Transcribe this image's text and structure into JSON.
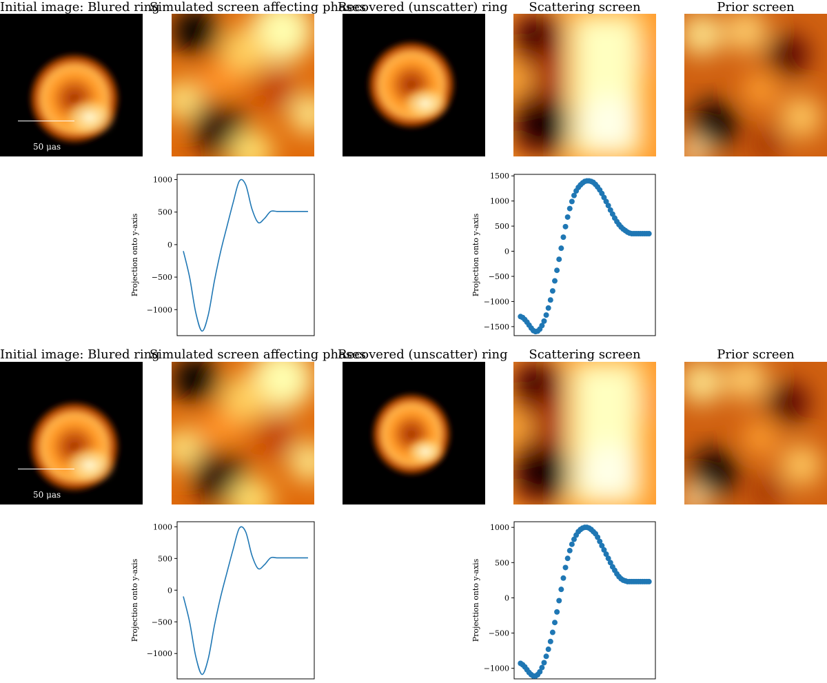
{
  "rows": [
    {
      "titles": [
        "Initial image: Blured ring",
        "Simulated screen affecting phases",
        "Recovered (unscatter) ring",
        "Scattering screen",
        "Prior screen"
      ],
      "scalebar_label": "50 μas"
    },
    {
      "titles": [
        "Initial image: Blured ring",
        "Simulated screen affecting phases",
        "Recovered (unscatter) ring",
        "Scattering screen",
        "Prior screen"
      ],
      "scalebar_label": "50 μas"
    }
  ],
  "colors": {
    "line": "#1f77b4",
    "colormap": "afmhot"
  },
  "chart_data": [
    {
      "type": "line",
      "ylabel": "Projection onto y-axis",
      "xlabel": "",
      "ylim": [
        -1400,
        1080
      ],
      "yticks": [
        1000,
        500,
        0,
        -500,
        -1000
      ],
      "x": [
        0,
        1,
        2,
        3,
        4,
        5,
        6,
        7,
        8,
        9,
        10,
        11,
        12,
        13,
        14,
        15,
        16,
        17,
        18,
        19,
        20
      ],
      "values": [
        -100,
        -500,
        -1050,
        -1330,
        -1080,
        -550,
        -100,
        280,
        650,
        980,
        920,
        550,
        340,
        400,
        510,
        510,
        510,
        510,
        510,
        510,
        510
      ]
    },
    {
      "type": "scatter",
      "ylabel": "Projection onto y-axis",
      "xlabel": "",
      "ylim": [
        -1680,
        1530
      ],
      "yticks": [
        1500,
        1000,
        500,
        0,
        -500,
        -1000,
        -1500
      ],
      "x": [
        0,
        1,
        2,
        3,
        4,
        5,
        6,
        7,
        8,
        9,
        10,
        11,
        12,
        13,
        14,
        15,
        16,
        17,
        18,
        19,
        20,
        21,
        22,
        23,
        24,
        25,
        26,
        27,
        28,
        29,
        30,
        31,
        32,
        33,
        34,
        35,
        36,
        37,
        38,
        39,
        40,
        41,
        42,
        43,
        44,
        45,
        46,
        47,
        48,
        49,
        50,
        51,
        52,
        53,
        54,
        55,
        56,
        57,
        58,
        59,
        60
      ],
      "values": [
        -1300,
        -1320,
        -1360,
        -1410,
        -1470,
        -1530,
        -1580,
        -1600,
        -1590,
        -1550,
        -1480,
        -1390,
        -1270,
        -1130,
        -970,
        -790,
        -590,
        -380,
        -160,
        60,
        280,
        490,
        680,
        850,
        990,
        1110,
        1200,
        1270,
        1320,
        1360,
        1390,
        1400,
        1400,
        1390,
        1370,
        1330,
        1280,
        1220,
        1150,
        1070,
        990,
        910,
        820,
        740,
        660,
        590,
        530,
        480,
        440,
        410,
        380,
        360,
        350,
        350,
        350,
        350,
        350,
        350,
        350,
        350,
        350
      ]
    },
    {
      "type": "line",
      "ylabel": "Projection onto y-axis",
      "xlabel": "",
      "ylim": [
        -1400,
        1080
      ],
      "yticks": [
        1000,
        500,
        0,
        -500,
        -1000
      ],
      "x": [
        0,
        1,
        2,
        3,
        4,
        5,
        6,
        7,
        8,
        9,
        10,
        11,
        12,
        13,
        14,
        15,
        16,
        17,
        18,
        19,
        20
      ],
      "values": [
        -100,
        -500,
        -1050,
        -1330,
        -1080,
        -550,
        -100,
        280,
        650,
        980,
        920,
        550,
        340,
        400,
        510,
        510,
        510,
        510,
        510,
        510,
        510
      ]
    },
    {
      "type": "scatter",
      "ylabel": "Projection onto y-axis",
      "xlabel": "",
      "ylim": [
        -1150,
        1080
      ],
      "yticks": [
        1000,
        500,
        0,
        -500,
        -1000
      ],
      "x": [
        0,
        1,
        2,
        3,
        4,
        5,
        6,
        7,
        8,
        9,
        10,
        11,
        12,
        13,
        14,
        15,
        16,
        17,
        18,
        19,
        20,
        21,
        22,
        23,
        24,
        25,
        26,
        27,
        28,
        29,
        30,
        31,
        32,
        33,
        34,
        35,
        36,
        37,
        38,
        39,
        40,
        41,
        42,
        43,
        44,
        45,
        46,
        47,
        48,
        49,
        50,
        51,
        52,
        53,
        54,
        55,
        56,
        57,
        58,
        59,
        60
      ],
      "values": [
        -930,
        -950,
        -980,
        -1020,
        -1060,
        -1090,
        -1110,
        -1110,
        -1090,
        -1050,
        -990,
        -920,
        -830,
        -730,
        -620,
        -490,
        -350,
        -200,
        -40,
        120,
        280,
        430,
        560,
        670,
        760,
        830,
        890,
        940,
        970,
        990,
        1000,
        1000,
        990,
        970,
        940,
        910,
        860,
        800,
        740,
        680,
        620,
        560,
        500,
        440,
        390,
        340,
        300,
        270,
        250,
        240,
        230,
        230,
        230,
        230,
        230,
        230,
        230,
        230,
        230,
        230,
        230
      ]
    }
  ]
}
